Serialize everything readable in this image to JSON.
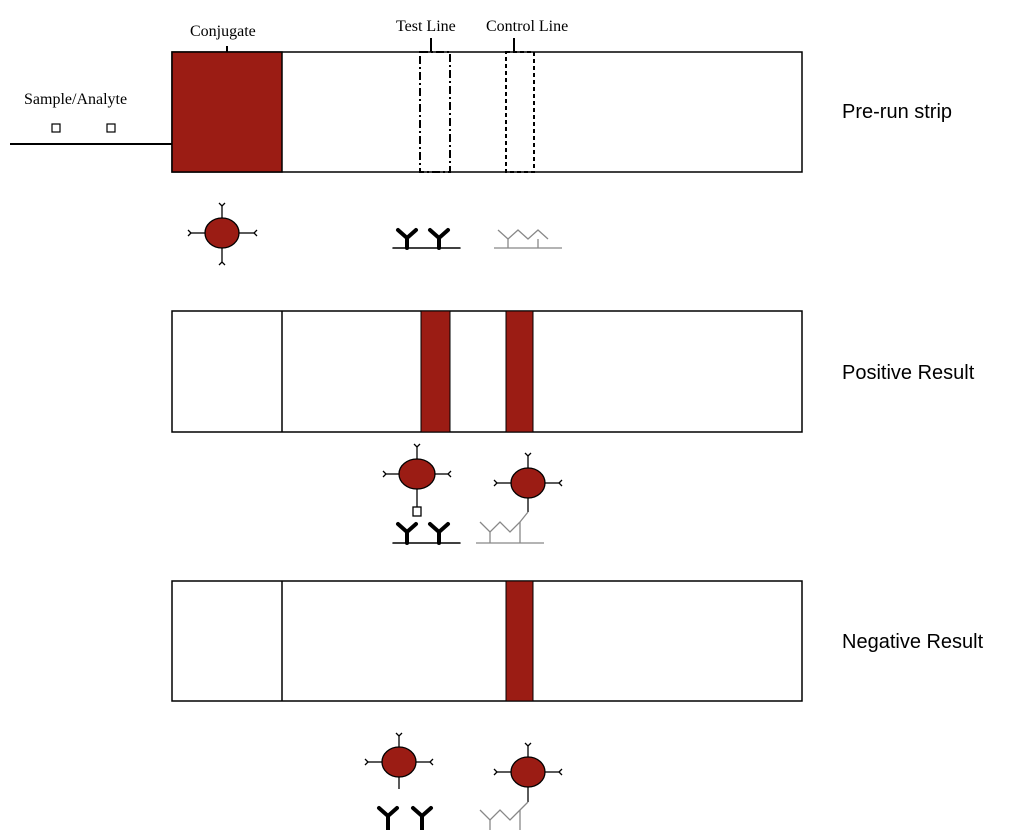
{
  "labels": {
    "conjugate": "Conjugate",
    "test_line": "Test Line",
    "control_line": "Control Line",
    "sample_analyte": "Sample/Analyte"
  },
  "strips": [
    {
      "caption": "Pre-run strip"
    },
    {
      "caption": "Positive Result"
    },
    {
      "caption": "Negative Result"
    }
  ],
  "colors": {
    "conjugate": "#9b1c14",
    "outline": "#000000",
    "control_antibody": "#888888"
  }
}
